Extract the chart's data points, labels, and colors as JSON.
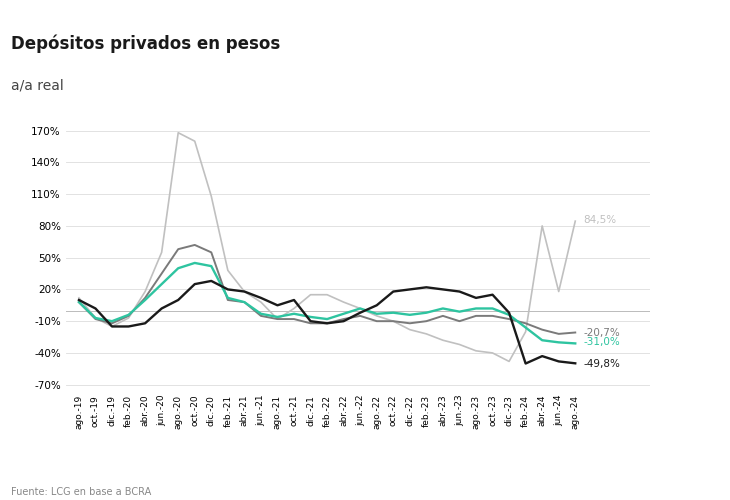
{
  "title": "Depósitos privados en pesos",
  "subtitle": "a/a real",
  "footnote": "Fuente: LCG en base a BCRA",
  "ylim": [
    -0.75,
    1.8
  ],
  "yticks": [
    -0.7,
    -0.4,
    -0.1,
    0.2,
    0.5,
    0.8,
    1.1,
    1.4,
    1.7
  ],
  "ytick_labels": [
    "-70%",
    "-40%",
    "-10%",
    "20%",
    "50%",
    "80%",
    "110%",
    "140%",
    "170%"
  ],
  "end_labels": {
    "otros": "84,5%",
    "a_la_vista": "-20,7%",
    "total": "-31,0%",
    "plazo_fijo": "-49,8%"
  },
  "colors": {
    "plazo_fijo": "#1a1a1a",
    "a_la_vista": "#7a7a7a",
    "total": "#2ec4a0",
    "otros": "#c0c0c0"
  },
  "header_color": "#e8e8e8",
  "background_color": "#ffffff",
  "grid_color": "#dddddd",
  "x_labels": [
    "ago.-19",
    "oct.-19",
    "dic.-19",
    "feb.-20",
    "abr.-20",
    "jun.-20",
    "ago.-20",
    "oct.-20",
    "dic.-20",
    "feb.-21",
    "abr.-21",
    "jun.-21",
    "ago.-21",
    "oct.-21",
    "dic.-21",
    "feb.-22",
    "abr.-22",
    "jun.-22",
    "ago.-22",
    "oct.-22",
    "dic.-22",
    "feb.-23",
    "abr.-23",
    "jun.-23",
    "ago.-23",
    "oct.-23",
    "dic.-23",
    "feb.-24",
    "abr.-24",
    "jun.-24",
    "ago.-24"
  ],
  "plazo_fijo": [
    0.1,
    0.02,
    -0.15,
    -0.15,
    -0.12,
    0.02,
    0.1,
    0.25,
    0.28,
    0.2,
    0.18,
    0.12,
    0.05,
    0.1,
    -0.1,
    -0.12,
    -0.1,
    -0.02,
    0.05,
    0.18,
    0.2,
    0.22,
    0.2,
    0.18,
    0.12,
    0.15,
    -0.02,
    -0.5,
    -0.43,
    -0.48,
    -0.498
  ],
  "a_la_vista": [
    0.08,
    -0.08,
    -0.12,
    -0.05,
    0.12,
    0.35,
    0.58,
    0.62,
    0.55,
    0.1,
    0.08,
    -0.05,
    -0.08,
    -0.08,
    -0.12,
    -0.12,
    -0.08,
    -0.05,
    -0.1,
    -0.1,
    -0.12,
    -0.1,
    -0.05,
    -0.1,
    -0.05,
    -0.05,
    -0.08,
    -0.12,
    -0.18,
    -0.22,
    -0.207
  ],
  "total": [
    0.08,
    -0.07,
    -0.1,
    -0.04,
    0.1,
    0.25,
    0.4,
    0.45,
    0.42,
    0.12,
    0.08,
    -0.03,
    -0.06,
    -0.03,
    -0.06,
    -0.08,
    -0.03,
    0.02,
    -0.03,
    -0.02,
    -0.04,
    -0.02,
    0.02,
    -0.01,
    0.02,
    0.02,
    -0.04,
    -0.16,
    -0.28,
    -0.3,
    -0.31
  ],
  "otros": [
    0.12,
    -0.07,
    -0.15,
    -0.07,
    0.18,
    0.55,
    1.68,
    1.6,
    1.08,
    0.38,
    0.18,
    0.08,
    -0.08,
    0.02,
    0.15,
    0.15,
    0.08,
    0.02,
    -0.05,
    -0.1,
    -0.18,
    -0.22,
    -0.28,
    -0.32,
    -0.38,
    -0.4,
    -0.48,
    -0.2,
    0.8,
    0.18,
    0.845
  ]
}
